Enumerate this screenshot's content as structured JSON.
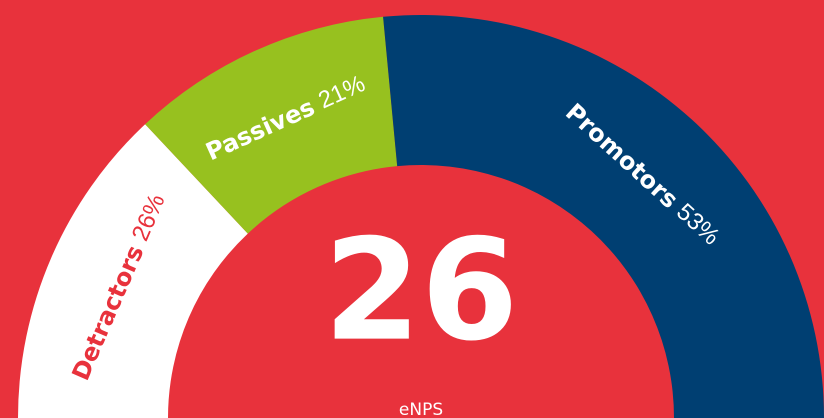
{
  "chart_data": {
    "type": "half-donut",
    "categories": [
      "Detractors",
      "Passives",
      "Promotors"
    ],
    "values": [
      26,
      21,
      53
    ],
    "value_labels": [
      "26%",
      "21%",
      "53%"
    ],
    "colors": [
      "#ffffff",
      "#97c11f",
      "#003f72"
    ],
    "label_colors": [
      "#e8323c",
      "#ffffff",
      "#ffffff"
    ],
    "score": 26,
    "score_label": "eNPS"
  }
}
